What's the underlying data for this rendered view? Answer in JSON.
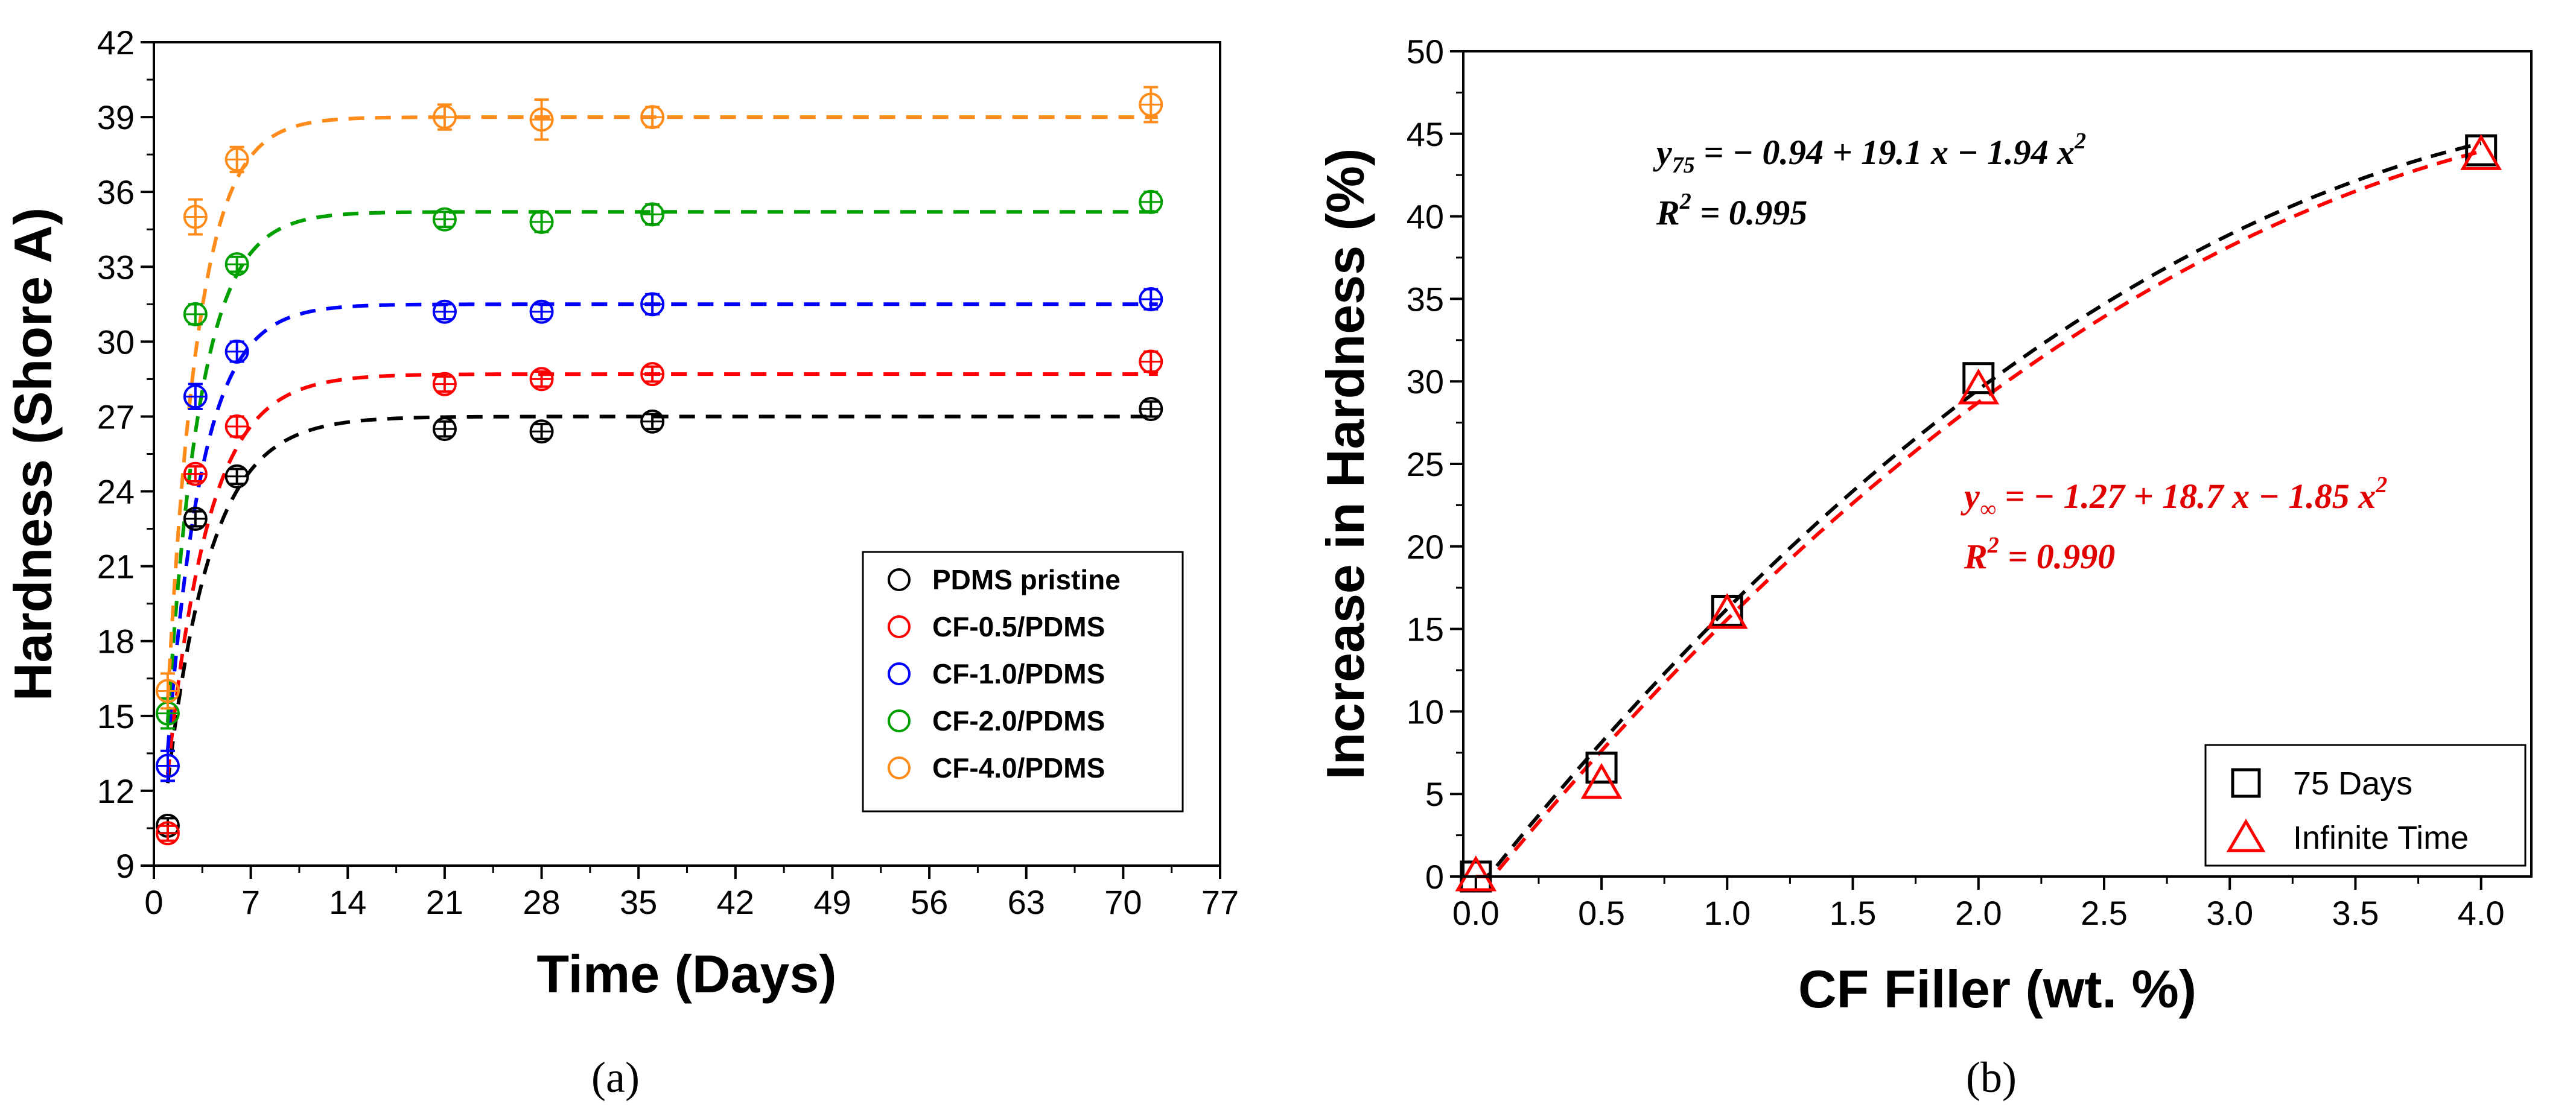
{
  "chart_data": [
    {
      "type": "line",
      "panel_label": "a",
      "xlabel": "Time (Days)",
      "ylabel": "Hardness (Shore A)",
      "xlim": [
        0,
        77
      ],
      "ylim": [
        9,
        42
      ],
      "xticks": [
        0,
        7,
        14,
        21,
        28,
        35,
        42,
        49,
        56,
        63,
        70,
        77
      ],
      "yticks": [
        9,
        12,
        15,
        18,
        21,
        24,
        27,
        30,
        33,
        36,
        39,
        42
      ],
      "legend_position": "bottom-right",
      "x": [
        1,
        3,
        6,
        21,
        28,
        36,
        72
      ],
      "series": [
        {
          "name": "PDMS pristine",
          "color": "#000000",
          "values": [
            10.6,
            22.9,
            24.6,
            26.5,
            26.4,
            26.8,
            27.3
          ],
          "errors": [
            0.3,
            0.3,
            0.3,
            0.3,
            0.3,
            0.3,
            0.3
          ],
          "fit": {
            "start": 10.3,
            "plateau": 27.0,
            "k": 0.32
          }
        },
        {
          "name": "CF-0.5/PDMS",
          "color": "#ff0000",
          "values": [
            10.3,
            24.7,
            26.6,
            28.3,
            28.5,
            28.7,
            29.2
          ],
          "errors": [
            0.3,
            0.3,
            0.4,
            0.3,
            0.3,
            0.3,
            0.4
          ],
          "fit": {
            "start": 10.3,
            "plateau": 28.7,
            "k": 0.34
          }
        },
        {
          "name": "CF-1.0/PDMS",
          "color": "#0000ff",
          "values": [
            13.0,
            27.8,
            29.6,
            31.2,
            31.2,
            31.5,
            31.7
          ],
          "errors": [
            0.6,
            0.5,
            0.4,
            0.3,
            0.3,
            0.4,
            0.4
          ],
          "fit": {
            "start": 10.5,
            "plateau": 31.5,
            "k": 0.4
          }
        },
        {
          "name": "CF-2.0/PDMS",
          "color": "#00a000",
          "values": [
            15.1,
            31.1,
            33.1,
            34.9,
            34.8,
            35.1,
            35.6
          ],
          "errors": [
            0.6,
            0.4,
            0.3,
            0.3,
            0.4,
            0.4,
            0.4
          ],
          "fit": {
            "start": 11.0,
            "plateau": 35.2,
            "k": 0.42
          }
        },
        {
          "name": "CF-4.0/PDMS",
          "color": "#ff8c1a",
          "values": [
            16.0,
            35.0,
            37.3,
            39.0,
            38.9,
            39.0,
            39.5
          ],
          "errors": [
            0.7,
            0.7,
            0.5,
            0.5,
            0.8,
            0.4,
            0.7
          ],
          "fit": {
            "start": 11.0,
            "plateau": 39.0,
            "k": 0.45
          }
        }
      ]
    },
    {
      "type": "scatter",
      "panel_label": "b",
      "xlabel": "CF Filler (wt. %)",
      "ylabel": "Increase in Hardness (%)",
      "xlim": [
        -0.05,
        4.2
      ],
      "ylim": [
        0,
        50
      ],
      "xticks": [
        0.0,
        0.5,
        1.0,
        1.5,
        2.0,
        2.5,
        3.0,
        3.5,
        4.0
      ],
      "xtick_labels": [
        "0.0",
        "0.5",
        "1.0",
        "1.5",
        "2.0",
        "2.5",
        "3.0",
        "3.5",
        "4.0"
      ],
      "yticks": [
        0,
        5,
        10,
        15,
        20,
        25,
        30,
        35,
        40,
        45,
        50
      ],
      "legend_position": "bottom-right",
      "x": [
        0,
        0.5,
        1.0,
        2.0,
        4.0
      ],
      "series": [
        {
          "name": "75 Days",
          "marker": "square",
          "color": "#000000",
          "values": [
            0,
            6.6,
            16.1,
            30.2,
            44.0
          ],
          "fit": [
            -0.94,
            19.1,
            -1.94
          ]
        },
        {
          "name": "Infinite Time",
          "marker": "triangle",
          "color": "#ff0000",
          "values": [
            0,
            5.6,
            15.9,
            29.5,
            43.7
          ],
          "fit": [
            -1.27,
            18.7,
            -1.85
          ]
        }
      ],
      "annotations": {
        "eq75": {
          "y_sub": "75",
          "rest": " = − 0.94 + 19.1 x − 1.94 x",
          "sup": "2"
        },
        "r75": {
          "label": "R",
          "sup": "2",
          "rest": " = 0.995"
        },
        "eqInf": {
          "y_sub": "∞",
          "rest": " = − 1.27 + 18.7 x − 1.85 x",
          "sup": "2"
        },
        "rInf": {
          "label": "R",
          "sup": "2",
          "rest": " = 0.990"
        }
      }
    }
  ],
  "captions": {
    "a": "(a)",
    "b": "(b)"
  }
}
